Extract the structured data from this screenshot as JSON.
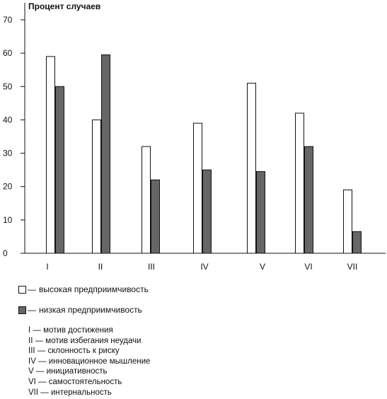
{
  "chart_data": {
    "type": "bar",
    "ylabel": "Процент случаев",
    "ylim": [
      0,
      70
    ],
    "yticks": [
      0,
      10,
      20,
      30,
      40,
      50,
      60,
      70
    ],
    "categories": [
      "I",
      "II",
      "III",
      "IV",
      "V",
      "VI",
      "VII"
    ],
    "series": [
      {
        "name": "высокая предприимчивость",
        "color": "#ffffff",
        "values": [
          59,
          40,
          32,
          39,
          51,
          42,
          19
        ]
      },
      {
        "name": "низкая предприимчивость",
        "color": "#666666",
        "values": [
          50,
          59.5,
          22,
          25,
          24.5,
          32,
          6.5
        ]
      }
    ],
    "legend_placement": "bottom-left",
    "grid": false
  },
  "key": [
    {
      "num": "I",
      "text": "мотив достижения"
    },
    {
      "num": "II",
      "text": "мотив избегания неудачи"
    },
    {
      "num": "III",
      "text": "склонность к риску"
    },
    {
      "num": "IV",
      "text": "инновационное мышление"
    },
    {
      "num": "V",
      "text": "инициативность"
    },
    {
      "num": "VI",
      "text": "самостоятельность"
    },
    {
      "num": "VII",
      "text": "интернальность"
    }
  ]
}
